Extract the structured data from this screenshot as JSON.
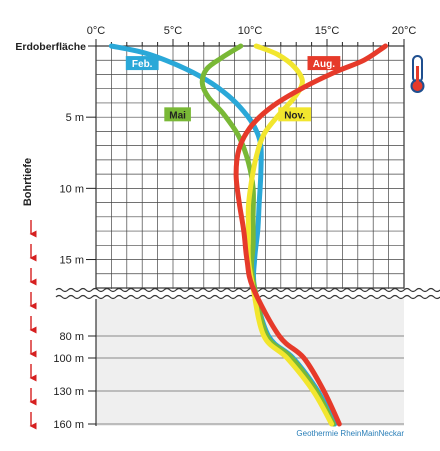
{
  "chart_data": {
    "type": "line",
    "x_unit": "°C",
    "x_ticks": [
      {
        "value": 0,
        "label": "0°C"
      },
      {
        "value": 5,
        "label": "5°C"
      },
      {
        "value": 10,
        "label": "10°C"
      },
      {
        "value": 15,
        "label": "15°C"
      },
      {
        "value": 20,
        "label": "20°C"
      }
    ],
    "xlim": [
      0,
      20
    ],
    "y_ticks_upper": [
      {
        "value": 0,
        "label": "Erdoberfläche"
      },
      {
        "value": 5,
        "label": "5 m"
      },
      {
        "value": 10,
        "label": "10 m"
      },
      {
        "value": 15,
        "label": "15 m"
      }
    ],
    "ylim_upper": [
      0,
      17
    ],
    "y_ticks_lower": [
      {
        "value": 80,
        "label": "80 m"
      },
      {
        "value": 100,
        "label": "100 m"
      },
      {
        "value": 130,
        "label": "130 m"
      },
      {
        "value": 160,
        "label": "160 m"
      }
    ],
    "ylabel": "Bohrtiefe",
    "grid": true,
    "series": [
      {
        "name": "Feb.",
        "color": "#2aa8d8",
        "points": [
          [
            1,
            0
          ],
          [
            3.2,
            0.5
          ],
          [
            5.4,
            1.4
          ],
          [
            7.2,
            2.4
          ],
          [
            8.6,
            3.5
          ],
          [
            9.6,
            4.6
          ],
          [
            10.3,
            5.7
          ],
          [
            10.7,
            7
          ],
          [
            10.7,
            9
          ],
          [
            10.6,
            11
          ],
          [
            10.5,
            13
          ],
          [
            10.3,
            15
          ],
          [
            10.3,
            17
          ],
          [
            11.2,
            80
          ],
          [
            12.8,
            100
          ],
          [
            14.4,
            130
          ],
          [
            15.5,
            160
          ]
        ]
      },
      {
        "name": "Mai",
        "color": "#79b836",
        "points": [
          [
            9.4,
            0
          ],
          [
            8.2,
            0.8
          ],
          [
            7.2,
            1.6
          ],
          [
            6.9,
            2.6
          ],
          [
            7.3,
            3.6
          ],
          [
            8.3,
            4.8
          ],
          [
            9.3,
            6.4
          ],
          [
            9.9,
            8.2
          ],
          [
            10.2,
            10
          ],
          [
            10.2,
            12
          ],
          [
            10.2,
            14
          ],
          [
            10.1,
            15.5
          ],
          [
            10.3,
            17
          ],
          [
            11.1,
            80
          ],
          [
            12.7,
            100
          ],
          [
            14.3,
            130
          ],
          [
            15.4,
            160
          ]
        ]
      },
      {
        "name": "Aug.",
        "color": "#e63a2a",
        "points": [
          [
            18.8,
            0
          ],
          [
            17.4,
            1
          ],
          [
            15.6,
            1.8
          ],
          [
            13.5,
            2.9
          ],
          [
            11.5,
            4.2
          ],
          [
            10.1,
            5.6
          ],
          [
            9.3,
            7.2
          ],
          [
            9.1,
            9
          ],
          [
            9.3,
            11
          ],
          [
            9.6,
            13
          ],
          [
            9.8,
            15
          ],
          [
            10.2,
            17
          ],
          [
            11.9,
            80
          ],
          [
            13.5,
            100
          ],
          [
            14.8,
            130
          ],
          [
            15.8,
            160
          ]
        ]
      },
      {
        "name": "Nov.",
        "color": "#f2e62e",
        "points": [
          [
            10.4,
            0
          ],
          [
            11.8,
            0.6
          ],
          [
            12.9,
            1.5
          ],
          [
            13.4,
            2.5
          ],
          [
            12.9,
            3.6
          ],
          [
            11.9,
            4.8
          ],
          [
            10.9,
            6.2
          ],
          [
            10.4,
            7.8
          ],
          [
            10.1,
            9.5
          ],
          [
            9.9,
            11.2
          ],
          [
            9.9,
            13
          ],
          [
            9.9,
            15
          ],
          [
            10.2,
            17
          ],
          [
            10.9,
            80
          ],
          [
            12.4,
            100
          ],
          [
            14.1,
            130
          ],
          [
            15.3,
            160
          ]
        ]
      }
    ]
  },
  "credit": "Geothermie RheinMainNeckar"
}
